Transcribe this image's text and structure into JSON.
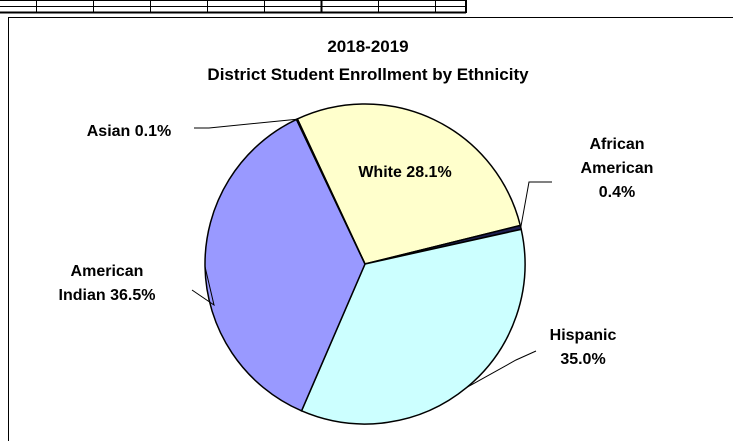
{
  "chart_data": {
    "type": "pie",
    "title_line1": "2018-2019",
    "title_line2": "District Student Enrollment by Ethnicity",
    "start_angle_deg": 115,
    "slices": [
      {
        "label": "White",
        "value": 28.1,
        "color": "#ffffcc",
        "label_lines": [
          "White 28.1%"
        ]
      },
      {
        "label": "African American",
        "value": 0.4,
        "color": "#1f1f52",
        "label_lines": [
          "African",
          "American",
          "0.4%"
        ]
      },
      {
        "label": "Hispanic",
        "value": 35.0,
        "color": "#ccffff",
        "label_lines": [
          "Hispanic",
          "35.0%"
        ]
      },
      {
        "label": "American Indian",
        "value": 36.5,
        "color": "#9999ff",
        "label_lines": [
          "American",
          "Indian 36.5%"
        ]
      },
      {
        "label": "Asian",
        "value": 0.1,
        "color": "#333399",
        "label_lines": [
          "Asian 0.1%"
        ]
      }
    ]
  }
}
